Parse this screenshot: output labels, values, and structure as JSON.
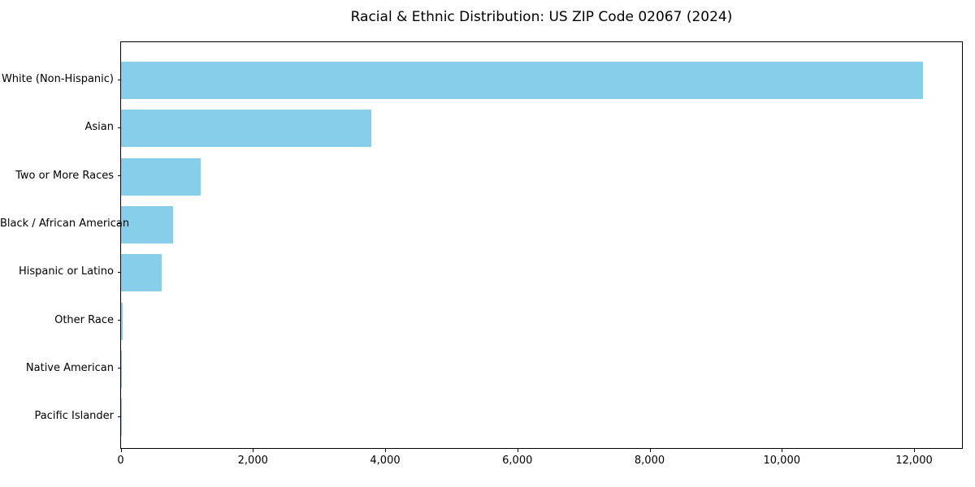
{
  "title": "Racial & Ethnic Distribution: US ZIP Code 02067 (2024)",
  "chart_data": {
    "type": "bar",
    "orientation": "horizontal",
    "title": "Racial & Ethnic Distribution: US ZIP Code 02067 (2024)",
    "xlabel": "",
    "ylabel": "",
    "categories": [
      "White (Non-Hispanic)",
      "Asian",
      "Two or More Races",
      "Black / African American",
      "Hispanic or Latino",
      "Other Race",
      "Native American",
      "Pacific Islander"
    ],
    "values": [
      12135,
      3780,
      1207,
      789,
      612,
      25,
      8,
      2
    ],
    "xlim": [
      0,
      12740
    ],
    "x_ticks": [
      0,
      2000,
      4000,
      6000,
      8000,
      10000,
      12000
    ],
    "x_tick_labels": [
      "0",
      "2,000",
      "4,000",
      "6,000",
      "8,000",
      "10,000",
      "12,000"
    ],
    "bar_color": "#87CEEB",
    "grid": false,
    "legend": "none"
  }
}
